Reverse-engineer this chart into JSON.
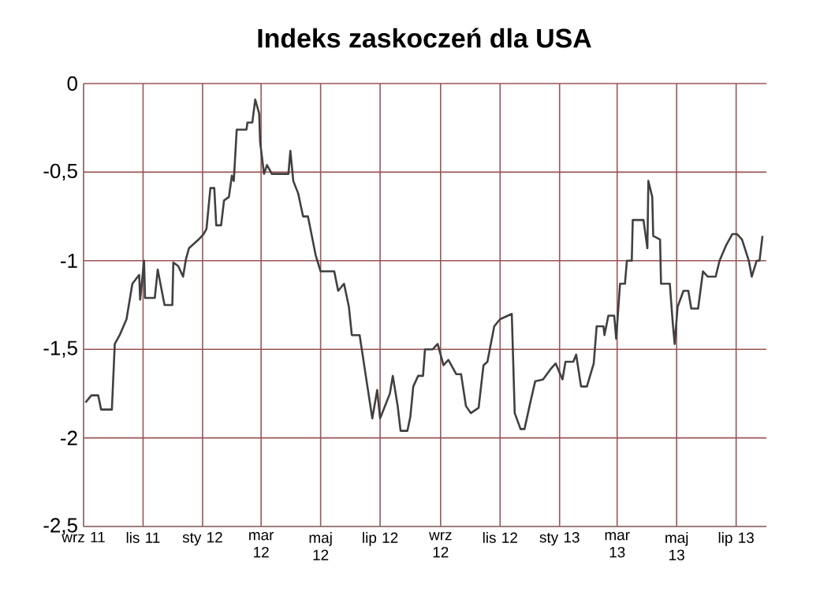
{
  "chart_data": {
    "type": "line",
    "title": "Indeks zaskoczeń dla USA",
    "x": [
      "2011-09-03",
      "2011-09-09",
      "2011-09-16",
      "2011-09-19",
      "2011-09-30",
      "2011-10-03",
      "2011-10-08",
      "2011-10-15",
      "2011-10-21",
      "2011-10-28",
      "2011-10-29",
      "2011-11-02",
      "2011-11-03",
      "2011-11-13",
      "2011-11-16",
      "2011-11-23",
      "2011-12-01",
      "2011-12-02",
      "2011-12-07",
      "2011-12-12",
      "2011-12-15",
      "2011-12-18",
      "2011-12-28",
      "2012-01-02",
      "2012-01-05",
      "2012-01-09",
      "2012-01-13",
      "2012-01-15",
      "2012-01-20",
      "2012-01-23",
      "2012-01-28",
      "2012-01-31",
      "2012-02-02",
      "2012-02-05",
      "2012-02-15",
      "2012-02-16",
      "2012-02-21",
      "2012-02-24",
      "2012-02-28",
      "2012-02-29",
      "2012-03-04",
      "2012-03-07",
      "2012-03-12",
      "2012-03-29",
      "2012-03-31",
      "2012-04-03",
      "2012-04-08",
      "2012-04-13",
      "2012-04-18",
      "2012-04-26",
      "2012-05-01",
      "2012-05-15",
      "2012-05-19",
      "2012-05-25",
      "2012-05-30",
      "2012-06-02",
      "2012-06-10",
      "2012-06-18",
      "2012-06-23",
      "2012-06-28",
      "2012-07-01",
      "2012-07-06",
      "2012-07-11",
      "2012-07-14",
      "2012-07-19",
      "2012-07-22",
      "2012-07-29",
      "2012-08-01",
      "2012-08-04",
      "2012-08-09",
      "2012-08-14",
      "2012-08-16",
      "2012-08-24",
      "2012-08-29",
      "2012-09-04",
      "2012-09-09",
      "2012-09-17",
      "2012-09-22",
      "2012-09-27",
      "2012-10-02",
      "2012-10-10",
      "2012-10-15",
      "2012-10-19",
      "2012-10-26",
      "2012-11-01",
      "2012-11-13",
      "2012-11-16",
      "2012-11-22",
      "2012-11-26",
      "2012-12-02",
      "2012-12-07",
      "2012-12-15",
      "2012-12-23",
      "2012-12-28",
      "2013-01-04",
      "2013-01-07",
      "2013-01-15",
      "2013-01-18",
      "2013-01-23",
      "2013-01-29",
      "2013-02-05",
      "2013-02-08",
      "2013-02-15",
      "2013-02-16",
      "2013-02-20",
      "2013-02-26",
      "2013-02-28",
      "2013-03-04",
      "2013-03-09",
      "2013-03-11",
      "2013-03-16",
      "2013-03-17",
      "2013-03-24",
      "2013-03-28",
      "2013-04-01",
      "2013-04-02",
      "2013-04-06",
      "2013-04-07",
      "2013-04-14",
      "2013-04-15",
      "2013-04-24",
      "2013-04-27",
      "2013-04-29",
      "2013-05-02",
      "2013-05-08",
      "2013-05-13",
      "2013-05-16",
      "2013-05-23",
      "2013-05-28",
      "2013-06-02",
      "2013-06-10",
      "2013-06-14",
      "2013-06-21",
      "2013-06-27",
      "2013-07-02",
      "2013-07-07",
      "2013-07-14",
      "2013-07-17",
      "2013-07-22",
      "2013-07-25",
      "2013-07-28"
    ],
    "series": [
      {
        "color": "#404040",
        "values": [
          -1.8,
          -1.76,
          -1.76,
          -1.84,
          -1.84,
          -1.47,
          -1.42,
          -1.33,
          -1.13,
          -1.08,
          -1.22,
          -1.0,
          -1.21,
          -1.21,
          -1.05,
          -1.25,
          -1.25,
          -1.01,
          -1.03,
          -1.09,
          -0.99,
          -0.93,
          -0.88,
          -0.85,
          -0.82,
          -0.59,
          -0.59,
          -0.8,
          -0.8,
          -0.66,
          -0.64,
          -0.52,
          -0.55,
          -0.26,
          -0.26,
          -0.22,
          -0.22,
          -0.09,
          -0.17,
          -0.33,
          -0.51,
          -0.46,
          -0.51,
          -0.51,
          -0.38,
          -0.55,
          -0.62,
          -0.75,
          -0.75,
          -0.97,
          -1.06,
          -1.06,
          -1.17,
          -1.13,
          -1.26,
          -1.42,
          -1.42,
          -1.71,
          -1.89,
          -1.73,
          -1.89,
          -1.82,
          -1.75,
          -1.65,
          -1.82,
          -1.96,
          -1.96,
          -1.88,
          -1.71,
          -1.65,
          -1.65,
          -1.5,
          -1.5,
          -1.47,
          -1.59,
          -1.56,
          -1.64,
          -1.64,
          -1.82,
          -1.86,
          -1.83,
          -1.59,
          -1.57,
          -1.37,
          -1.33,
          -1.3,
          -1.86,
          -1.95,
          -1.95,
          -1.8,
          -1.68,
          -1.67,
          -1.61,
          -1.58,
          -1.67,
          -1.57,
          -1.57,
          -1.53,
          -1.71,
          -1.71,
          -1.58,
          -1.37,
          -1.37,
          -1.42,
          -1.31,
          -1.31,
          -1.44,
          -1.13,
          -1.13,
          -1.0,
          -1.0,
          -0.77,
          -0.77,
          -0.77,
          -0.93,
          -0.55,
          -0.64,
          -0.86,
          -0.88,
          -1.13,
          -1.13,
          -1.35,
          -1.47,
          -1.26,
          -1.17,
          -1.17,
          -1.27,
          -1.27,
          -1.06,
          -1.09,
          -1.09,
          -1.0,
          -0.91,
          -0.85,
          -0.85,
          -0.88,
          -1.0,
          -1.09,
          -1.0,
          -1.0,
          -0.86
        ]
      }
    ],
    "xlim": [
      "2011-09-01",
      "2013-08-01"
    ],
    "xticks": [
      {
        "value": "2011-09-01",
        "label": "wrz 11"
      },
      {
        "value": "2011-11-01",
        "label": "lis 11"
      },
      {
        "value": "2012-01-01",
        "label": "sty 12"
      },
      {
        "value": "2012-03-01",
        "label": "mar 12"
      },
      {
        "value": "2012-05-01",
        "label": "maj 12"
      },
      {
        "value": "2012-07-01",
        "label": "lip 12"
      },
      {
        "value": "2012-09-01",
        "label": "wrz 12"
      },
      {
        "value": "2012-11-01",
        "label": "lis 12"
      },
      {
        "value": "2013-01-01",
        "label": "sty 13"
      },
      {
        "value": "2013-03-01",
        "label": "mar 13"
      },
      {
        "value": "2013-05-01",
        "label": "maj 13"
      },
      {
        "value": "2013-07-01",
        "label": "lip 13"
      }
    ],
    "ylim": [
      -2.5,
      0
    ],
    "yticks": [
      {
        "value": -2.5,
        "label": "-2,5"
      },
      {
        "value": -2,
        "label": "-2"
      },
      {
        "value": -1.5,
        "label": "-1,5"
      },
      {
        "value": -1,
        "label": "-1"
      },
      {
        "value": -0.5,
        "label": "-0,5"
      },
      0
    ],
    "grid": true,
    "marker": "none",
    "line_style": "solid"
  }
}
